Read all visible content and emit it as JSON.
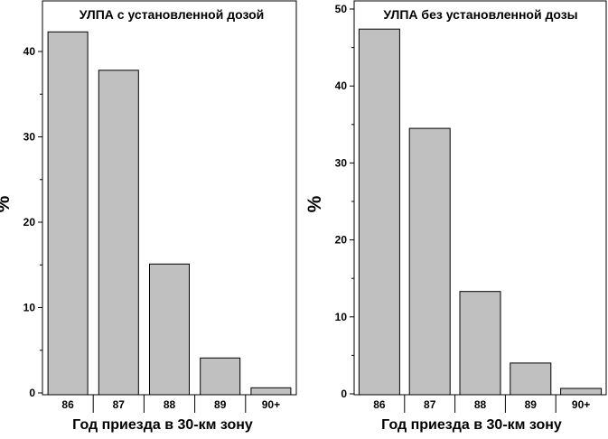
{
  "chart_data": [
    {
      "type": "bar",
      "title": "УЛПА с установленной дозой",
      "xlabel": "Год приезда в 30-км зону",
      "ylabel": "%",
      "categories": [
        "86",
        "87",
        "88",
        "89",
        "90+"
      ],
      "values": [
        42.3,
        37.8,
        15.1,
        4.1,
        0.6
      ],
      "ylim": [
        0,
        45
      ],
      "yticks": [
        "0",
        "10",
        "20",
        "30",
        "40"
      ],
      "grid": false,
      "bar_color": "#c0c0c0"
    },
    {
      "type": "bar",
      "title": "УЛПА без установленной дозы",
      "xlabel": "Год приезда в 30-км зону",
      "ylabel": "%",
      "categories": [
        "86",
        "87",
        "88",
        "89",
        "90+"
      ],
      "values": [
        47.4,
        34.5,
        13.3,
        4.0,
        0.7
      ],
      "ylim": [
        0,
        50
      ],
      "yticks": [
        "0",
        "10",
        "20",
        "30",
        "40",
        "50"
      ],
      "grid": false,
      "bar_color": "#c0c0c0"
    }
  ]
}
